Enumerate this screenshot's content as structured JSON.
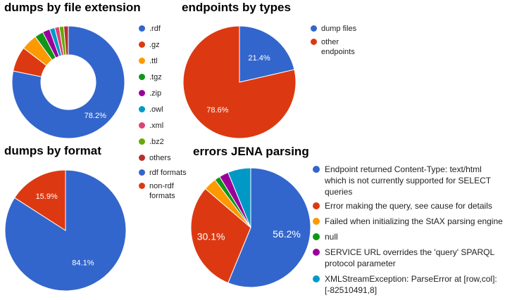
{
  "chart_data": [
    {
      "type": "pie",
      "title": "dumps by file extension",
      "donut": true,
      "legend_position": "right",
      "categories": [
        ".rdf",
        ".gz",
        ".ttl",
        ".tgz",
        ".zip",
        ".owl",
        ".xml",
        ".bz2",
        "others"
      ],
      "values": [
        78.2,
        7.2,
        4.6,
        2.5,
        2.1,
        1.5,
        1.3,
        1.3,
        1.3
      ],
      "colors": [
        "#3366cc",
        "#dc3912",
        "#ff9900",
        "#109618",
        "#990099",
        "#0099c6",
        "#dd4477",
        "#66aa00",
        "#b82e2e"
      ],
      "data_labels": [
        "78.2%",
        "",
        "",
        "",
        "",
        "",
        "",
        "",
        ""
      ]
    },
    {
      "type": "pie",
      "title": "endpoints by types",
      "legend_position": "right",
      "categories": [
        "dump files",
        "other endpoints"
      ],
      "values": [
        21.4,
        78.6
      ],
      "colors": [
        "#3366cc",
        "#dc3912"
      ],
      "data_labels": [
        "21.4%",
        "78.6%"
      ]
    },
    {
      "type": "pie",
      "title": "dumps by format",
      "legend_position": "right",
      "categories": [
        "rdf formats",
        "non-rdf formats"
      ],
      "values": [
        84.1,
        15.9
      ],
      "colors": [
        "#3366cc",
        "#dc3912"
      ],
      "data_labels": [
        "84.1%",
        "15.9%"
      ]
    },
    {
      "type": "pie",
      "title": "errors JENA parsing",
      "legend_position": "right",
      "categories": [
        "Endpoint returned Content-Type: text/html which is not currently supported for SELECT queries",
        "Error making the query, see cause for details",
        "Failed when initializing the StAX parsing engine",
        "null",
        "SERVICE URL overrides the 'query' SPARQL protocol parameter",
        "XMLStreamException: ParseError at [row,col]:[-82510491,8]"
      ],
      "values": [
        56.2,
        30.1,
        3.5,
        1.5,
        2.5,
        6.2
      ],
      "colors": [
        "#3366cc",
        "#dc3912",
        "#ff9900",
        "#109618",
        "#990099",
        "#0099c6"
      ],
      "data_labels": [
        "56.2%",
        "30.1%",
        "",
        "",
        "",
        ""
      ]
    }
  ],
  "legends": {
    "c0": [
      ".rdf",
      ".gz",
      ".ttl",
      ".tgz",
      ".zip",
      ".owl",
      ".xml",
      ".bz2",
      "others"
    ],
    "c1": [
      [
        "dump files"
      ],
      [
        "other",
        "endpoints"
      ]
    ],
    "c2": [
      [
        "rdf formats"
      ],
      [
        "non-rdf",
        "formats"
      ]
    ],
    "c3": [
      [
        "Endpoint returned Content-Type: text/html",
        "which is not currently supported for SELECT",
        "queries"
      ],
      [
        "Error making the query, see cause for details"
      ],
      [
        "Failed when initializing the StAX parsing engine"
      ],
      [
        "null"
      ],
      [
        "SERVICE URL overrides the 'query' SPARQL",
        "protocol parameter"
      ],
      [
        "XMLStreamException: ParseError at [row,col]:",
        "[-82510491,8]"
      ]
    ]
  }
}
